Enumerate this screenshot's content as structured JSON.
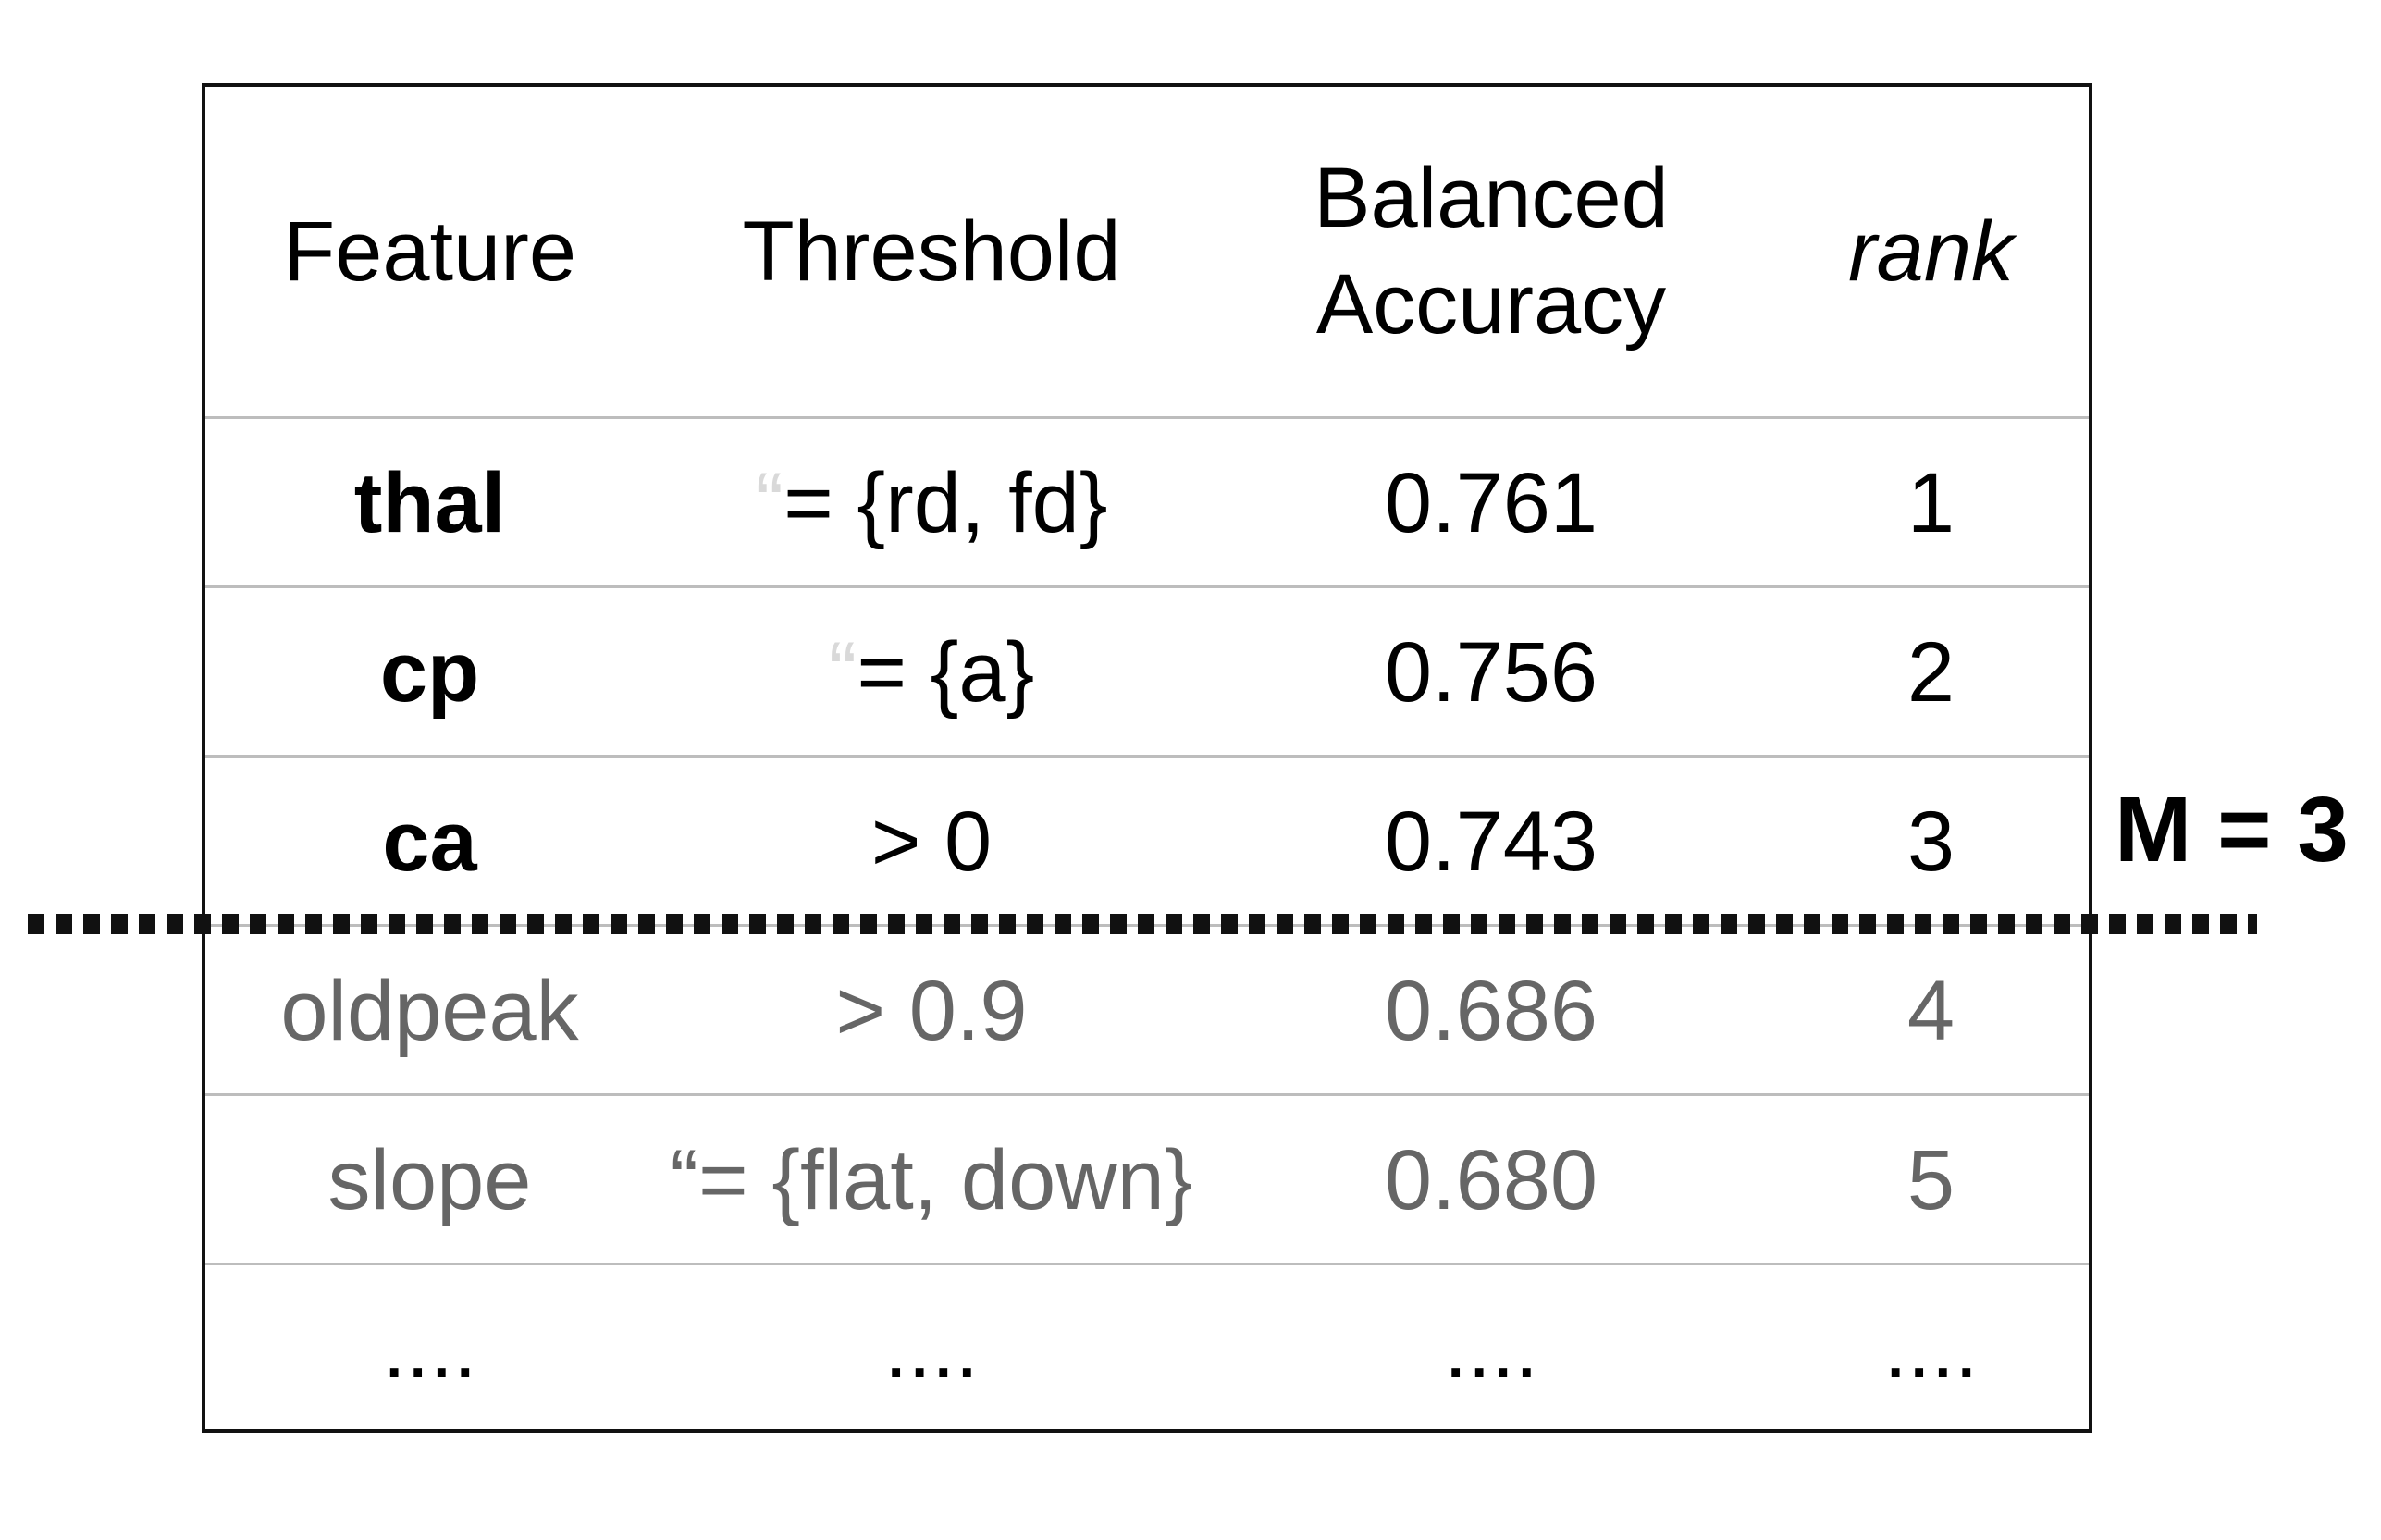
{
  "table": {
    "headers": {
      "feature": "Feature",
      "threshold": "Threshold",
      "balanced_accuracy_line1": "Balanced",
      "balanced_accuracy_line2": "Accuracy",
      "rank": "rank"
    },
    "rows": [
      {
        "feature": "thal",
        "threshold_quote": "“",
        "threshold": "= {rd, fd}",
        "balanced_accuracy": "0.761",
        "rank": "1"
      },
      {
        "feature": "cp",
        "threshold_quote": "“",
        "threshold": "= {a}",
        "balanced_accuracy": "0.756",
        "rank": "2"
      },
      {
        "feature": "ca",
        "threshold": "> 0",
        "balanced_accuracy": "0.743",
        "rank": "3"
      },
      {
        "feature": "oldpeak",
        "threshold": "> 0.9",
        "balanced_accuracy": "0.686",
        "rank": "4"
      },
      {
        "feature": "slope",
        "threshold_quote": "“",
        "threshold": "= {flat, down}",
        "balanced_accuracy": "0.680",
        "rank": "5"
      }
    ],
    "ellipsis": "...."
  },
  "cutoff": {
    "label": "M = 3"
  }
}
